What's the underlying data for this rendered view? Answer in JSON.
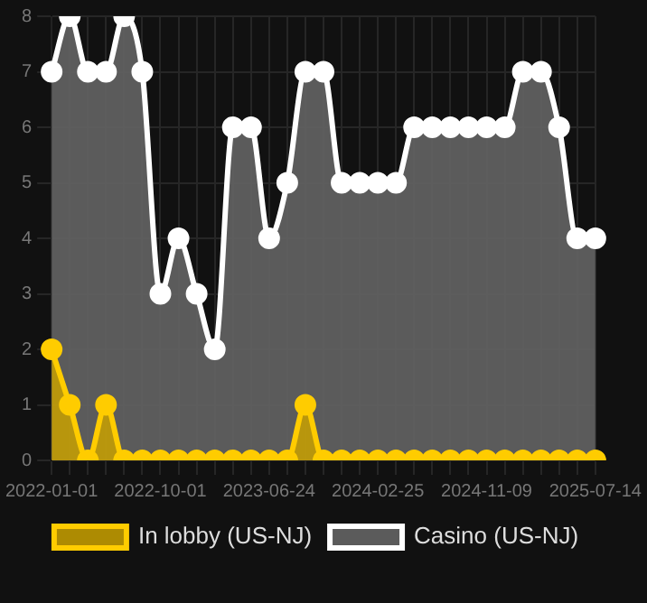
{
  "chart_data": {
    "type": "area",
    "categories": [
      "2022-01-01",
      null,
      null,
      null,
      null,
      null,
      "2022-10-01",
      null,
      null,
      null,
      null,
      null,
      "2023-06-24",
      null,
      null,
      null,
      null,
      null,
      "2024-02-25",
      null,
      null,
      null,
      null,
      null,
      "2024-11-09",
      null,
      null,
      null,
      null,
      null,
      "2025-07-14"
    ],
    "series": [
      {
        "name": "In lobby (US-NJ)",
        "color": "#ffcc00",
        "values": [
          2,
          1,
          0,
          1,
          0,
          0,
          0,
          0,
          0,
          0,
          0,
          0,
          0,
          0,
          1,
          0,
          0,
          0,
          0,
          0,
          0,
          0,
          0,
          0,
          0,
          0,
          0,
          0,
          0,
          0,
          0
        ]
      },
      {
        "name": "Casino (US-NJ)",
        "color": "#ffffff",
        "values": [
          7,
          8,
          7,
          7,
          8,
          7,
          3,
          4,
          3,
          2,
          6,
          6,
          4,
          5,
          7,
          7,
          5,
          5,
          5,
          5,
          6,
          6,
          6,
          6,
          6,
          6,
          7,
          7,
          6,
          4,
          4
        ]
      }
    ],
    "ylim": [
      0,
      8
    ],
    "yticks": [
      0,
      1,
      2,
      3,
      4,
      5,
      6,
      7,
      8
    ],
    "grid": true,
    "legend": "bottom",
    "marker": "circle"
  }
}
